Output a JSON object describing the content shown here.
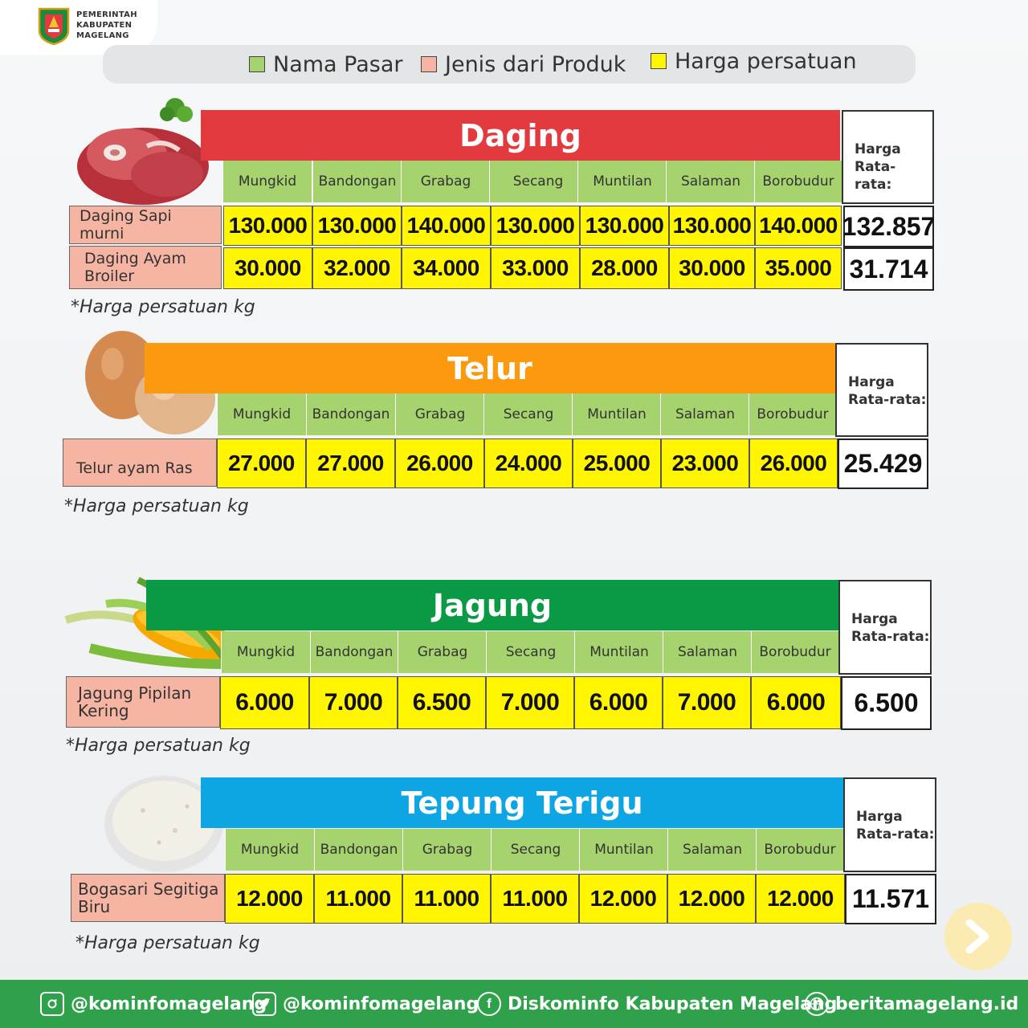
{
  "header": {
    "org_line1": "PEMERINTAH",
    "org_line2": "KABUPATEN",
    "org_line3": "MAGELANG"
  },
  "legend": [
    {
      "label": "Nama Pasar",
      "color": "#a7d36f"
    },
    {
      "label": "Jenis dari Produk",
      "color": "#f6b5a3"
    },
    {
      "label": "Harga persatuan",
      "color": "#fff500"
    }
  ],
  "markets": [
    "Mungkid",
    "Bandongan",
    "Grabag",
    "Secang",
    "Muntilan",
    "Salaman",
    "Borobudur"
  ],
  "avg_header_line1": "Harga",
  "avg_header_line2": "Rata-rata:",
  "sections": [
    {
      "title": "Daging",
      "color": "#e23a3e",
      "icon": "meat-image",
      "note": "*Harga persatuan kg",
      "rows": [
        {
          "product": "Daging Sapi murni",
          "prices": [
            "130.000",
            "130.000",
            "140.000",
            "130.000",
            "130.000",
            "130.000",
            "140.000"
          ],
          "avg": "132.857"
        },
        {
          "product": "Daging Ayam Broiler",
          "prices": [
            "30.000",
            "32.000",
            "34.000",
            "33.000",
            "28.000",
            "30.000",
            "35.000"
          ],
          "avg": "31.714"
        }
      ]
    },
    {
      "title": "Telur",
      "color": "#fb9a0e",
      "icon": "egg-image",
      "note": "*Harga persatuan kg",
      "rows": [
        {
          "product": "Telur ayam Ras",
          "prices": [
            "27.000",
            "27.000",
            "26.000",
            "24.000",
            "25.000",
            "23.000",
            "26.000"
          ],
          "avg": "25.429"
        }
      ]
    },
    {
      "title": "Jagung",
      "color": "#0a9a45",
      "icon": "corn-image",
      "note": "*Harga persatuan kg",
      "rows": [
        {
          "product": "Jagung Pipilan Kering",
          "prices": [
            "6.000",
            "7.000",
            "6.500",
            "7.000",
            "6.000",
            "7.000",
            "6.000"
          ],
          "avg": "6.500"
        }
      ]
    },
    {
      "title": "Tepung Terigu",
      "color": "#0ea5e4",
      "icon": "flour-image",
      "note": "*Harga persatuan kg",
      "rows": [
        {
          "product": "Bogasari Segitiga Biru",
          "prices": [
            "12.000",
            "11.000",
            "11.000",
            "11.000",
            "12.000",
            "12.000",
            "12.000"
          ],
          "avg": "11.571"
        }
      ]
    }
  ],
  "footer": [
    {
      "icon": "instagram-icon",
      "label": "@kominfomagelang"
    },
    {
      "icon": "twitter-icon",
      "label": "@kominfomagelang"
    },
    {
      "icon": "facebook-icon",
      "label": "Diskominfo Kabupaten Magelang"
    },
    {
      "icon": "globe-icon",
      "label": "beritamagelang.id"
    }
  ]
}
